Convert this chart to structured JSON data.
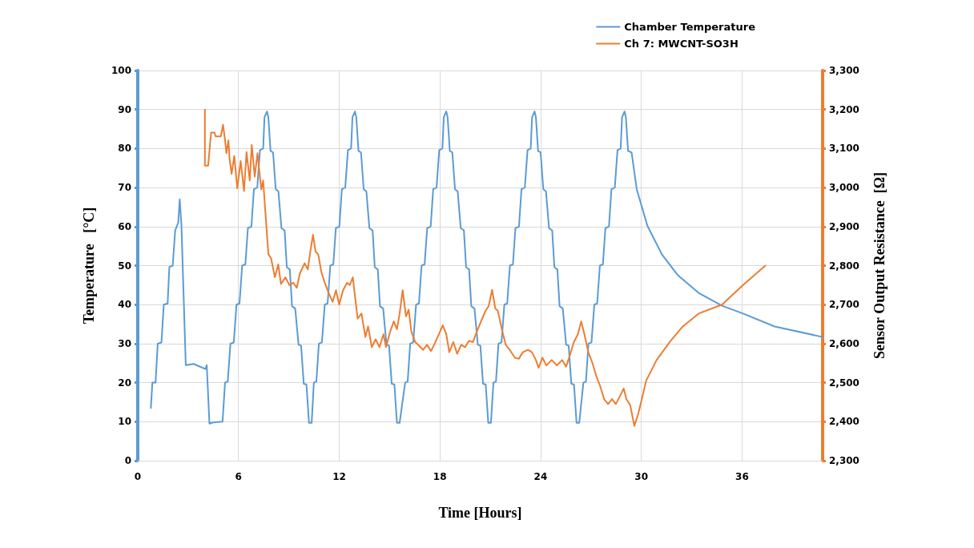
{
  "chart_data": {
    "type": "line",
    "xlabel": "Time [Hours]",
    "ylabel": "Temperature   [°C]",
    "y2label": "Sensor Output Resistance  [Ω]",
    "xlim": [
      0,
      40.8
    ],
    "xticks": [
      0,
      6,
      12,
      18,
      24,
      30,
      36
    ],
    "ylim": [
      0,
      100
    ],
    "yticks": [
      0,
      10,
      20,
      30,
      40,
      50,
      60,
      70,
      80,
      90,
      100
    ],
    "y2lim": [
      2300,
      3300
    ],
    "y2ticks": [
      {
        "value": 2300,
        "label": "2,300"
      },
      {
        "value": 2400,
        "label": "2,400"
      },
      {
        "value": 2500,
        "label": "2,500"
      },
      {
        "value": 2600,
        "label": "2,600"
      },
      {
        "value": 2700,
        "label": "2,700"
      },
      {
        "value": 2800,
        "label": "2,800"
      },
      {
        "value": 2900,
        "label": "2,900"
      },
      {
        "value": 3000,
        "label": "3,000"
      },
      {
        "value": 3100,
        "label": "3,100"
      },
      {
        "value": 3200,
        "label": "3,200"
      },
      {
        "value": 3300,
        "label": "3,300"
      }
    ],
    "grid": true,
    "legend": "top right",
    "marker": "none",
    "line_style": "solid",
    "series": [
      {
        "name": "Chamber Temperature",
        "color": "#5b9bd5",
        "x": [
          0.78,
          0.87,
          1.06,
          1.19,
          1.41,
          1.55,
          1.78,
          1.88,
          2.08,
          2.23,
          2.41,
          2.5,
          2.6,
          2.86,
          3.33,
          4.03,
          4.11,
          4.27,
          4.5,
          5.05,
          5.2,
          5.36,
          5.52,
          5.72,
          5.88,
          6.06,
          6.22,
          6.41,
          6.56,
          6.77,
          6.92,
          7.12,
          7.28,
          7.47,
          7.55,
          7.7,
          7.78,
          7.91,
          8.06,
          8.22,
          8.38,
          8.56,
          8.75,
          8.88,
          9.06,
          9.19,
          9.38,
          9.58,
          9.73,
          9.89,
          10.05,
          10.2,
          10.36,
          10.49,
          10.64,
          10.79,
          10.97,
          11.14,
          11.31,
          11.47,
          11.65,
          11.8,
          12.01,
          12.16,
          12.36,
          12.52,
          12.71,
          12.79,
          12.94,
          13.02,
          13.15,
          13.3,
          13.46,
          13.62,
          13.8,
          13.99,
          14.12,
          14.3,
          14.43,
          14.62,
          14.82,
          14.97,
          15.13,
          15.29,
          15.44,
          15.6,
          15.93,
          16.08,
          16.23,
          16.41,
          16.58,
          16.75,
          16.91,
          17.09,
          17.24,
          17.45,
          17.6,
          17.8,
          17.96,
          18.15,
          18.23,
          18.38,
          18.46,
          18.59,
          18.74,
          18.9,
          19.06,
          19.24,
          19.43,
          19.56,
          19.74,
          19.87,
          20.06,
          20.26,
          20.41,
          20.57,
          20.73,
          20.88,
          21.04,
          21.19,
          21.34,
          21.49,
          21.67,
          21.84,
          22.01,
          22.17,
          22.35,
          22.5,
          22.71,
          22.86,
          23.06,
          23.22,
          23.41,
          23.49,
          23.64,
          23.72,
          23.85,
          24.0,
          24.16,
          24.32,
          24.5,
          24.69,
          24.82,
          25.0,
          25.13,
          25.32,
          25.52,
          25.67,
          25.83,
          25.99,
          26.14,
          26.3,
          26.55,
          26.7,
          26.85,
          27.03,
          27.2,
          27.37,
          27.53,
          27.71,
          27.86,
          28.07,
          28.22,
          28.42,
          28.58,
          28.77,
          28.85,
          29.0,
          29.08,
          29.21,
          29.42,
          29.73,
          30.36,
          31.22,
          32.16,
          33.41,
          34.81,
          36.06,
          37.94,
          40.8
        ],
        "values": [
          13.5,
          20,
          20,
          30,
          30.3,
          40,
          40.3,
          49.6,
          50,
          59,
          61,
          67,
          60.5,
          24.5,
          24.8,
          23.5,
          24.5,
          9.5,
          9.8,
          10,
          20,
          20.3,
          30,
          30.3,
          40,
          40.3,
          50,
          50.3,
          59.6,
          60,
          69.6,
          70,
          79.6,
          80,
          88,
          89.5,
          88,
          79.4,
          79,
          69.6,
          69,
          59.6,
          59,
          49.6,
          49,
          39.6,
          39,
          29.7,
          29.5,
          19.7,
          19.5,
          9.7,
          9.7,
          20,
          20.3,
          30,
          30.3,
          40,
          40.3,
          50,
          50.3,
          59.6,
          60,
          69.6,
          70,
          79.6,
          80,
          88,
          89.5,
          88,
          79.4,
          79,
          69.6,
          69,
          59.6,
          59,
          49.6,
          49,
          39.6,
          39,
          29.7,
          29.5,
          19.7,
          19.5,
          9.7,
          9.7,
          20,
          20.3,
          30,
          30.3,
          40,
          40.3,
          50,
          50.3,
          59.6,
          60,
          69.6,
          70,
          79.6,
          80,
          88,
          89.5,
          88,
          79.4,
          79,
          69.6,
          69,
          59.6,
          59,
          49.6,
          49,
          39.6,
          39,
          29.7,
          29.5,
          19.7,
          19.5,
          9.7,
          9.7,
          20,
          20.3,
          30,
          30.3,
          40,
          40.3,
          50,
          50.3,
          59.6,
          60,
          69.6,
          70,
          79.6,
          80,
          88,
          89.5,
          88,
          79.4,
          79,
          69.6,
          69,
          59.6,
          59,
          49.6,
          49,
          39.6,
          39,
          29.7,
          29.5,
          19.7,
          19.5,
          9.7,
          9.7,
          20,
          20.3,
          30,
          30.3,
          40,
          40.3,
          50,
          50.3,
          59.6,
          60,
          69.6,
          70,
          79.6,
          80,
          88,
          89.5,
          88,
          79.4,
          79,
          69.5,
          60.2,
          52.9,
          47.6,
          43,
          39.7,
          37.7,
          34.4,
          31.7
        ]
      },
      {
        "name": "Ch 7: MWCNT-SO3H",
        "color": "#ed7d31",
        "axis": "y2",
        "x": [
          4.0,
          4.0,
          4.19,
          4.37,
          4.57,
          4.64,
          4.95,
          5.08,
          5.2,
          5.28,
          5.4,
          5.47,
          5.59,
          5.75,
          5.93,
          6.13,
          6.33,
          6.48,
          6.67,
          6.79,
          6.97,
          7.13,
          7.36,
          7.47,
          7.78,
          7.94,
          8.17,
          8.37,
          8.53,
          8.8,
          9.03,
          9.27,
          9.47,
          9.66,
          9.94,
          10.13,
          10.28,
          10.44,
          10.59,
          10.75,
          10.94,
          11.14,
          11.37,
          11.61,
          11.81,
          12.0,
          12.23,
          12.47,
          12.63,
          12.81,
          13.1,
          13.33,
          13.56,
          13.72,
          13.94,
          14.17,
          14.4,
          14.64,
          14.79,
          15.02,
          15.25,
          15.44,
          15.59,
          15.78,
          15.98,
          16.14,
          16.3,
          16.53,
          16.77,
          17.0,
          17.23,
          17.47,
          17.7,
          17.94,
          18.17,
          18.38,
          18.56,
          18.8,
          19.03,
          19.27,
          19.5,
          19.73,
          19.97,
          20.2,
          20.52,
          20.72,
          20.91,
          21.11,
          21.3,
          21.45,
          21.69,
          21.92,
          22.16,
          22.47,
          22.7,
          22.94,
          23.25,
          23.48,
          23.72,
          23.88,
          24.11,
          24.34,
          24.66,
          24.97,
          25.28,
          25.52,
          25.75,
          25.98,
          26.22,
          26.42,
          26.61,
          26.84,
          27.08,
          27.31,
          27.55,
          27.78,
          28.02,
          28.25,
          28.48,
          28.72,
          28.95,
          29.11,
          29.34,
          29.58,
          29.81,
          30.29,
          30.91,
          31.69,
          32.47,
          33.41,
          34.81,
          36.06,
          37.39
        ],
        "values": [
          3200,
          3056,
          3056,
          3141,
          3141,
          3131,
          3131,
          3161,
          3121,
          3088,
          3121,
          3074,
          3035,
          3081,
          2998,
          3068,
          2991,
          3091,
          3018,
          3109,
          3028,
          3088,
          2995,
          3018,
          2829,
          2819,
          2770,
          2803,
          2753,
          2770,
          2750,
          2756,
          2743,
          2780,
          2806,
          2790,
          2836,
          2879,
          2836,
          2829,
          2783,
          2756,
          2730,
          2707,
          2737,
          2700,
          2737,
          2756,
          2750,
          2770,
          2664,
          2677,
          2617,
          2644,
          2591,
          2611,
          2591,
          2624,
          2591,
          2628,
          2657,
          2637,
          2674,
          2737,
          2670,
          2687,
          2631,
          2604,
          2594,
          2584,
          2597,
          2581,
          2601,
          2624,
          2647,
          2624,
          2578,
          2604,
          2574,
          2597,
          2591,
          2607,
          2604,
          2631,
          2664,
          2684,
          2697,
          2738,
          2690,
          2684,
          2637,
          2597,
          2584,
          2564,
          2561,
          2578,
          2584,
          2578,
          2558,
          2538,
          2564,
          2544,
          2558,
          2544,
          2558,
          2541,
          2571,
          2604,
          2624,
          2657,
          2624,
          2578,
          2551,
          2518,
          2491,
          2458,
          2445,
          2458,
          2445,
          2465,
          2485,
          2458,
          2442,
          2389,
          2419,
          2505,
          2558,
          2604,
          2644,
          2677,
          2700,
          2750,
          2800
        ]
      }
    ]
  }
}
